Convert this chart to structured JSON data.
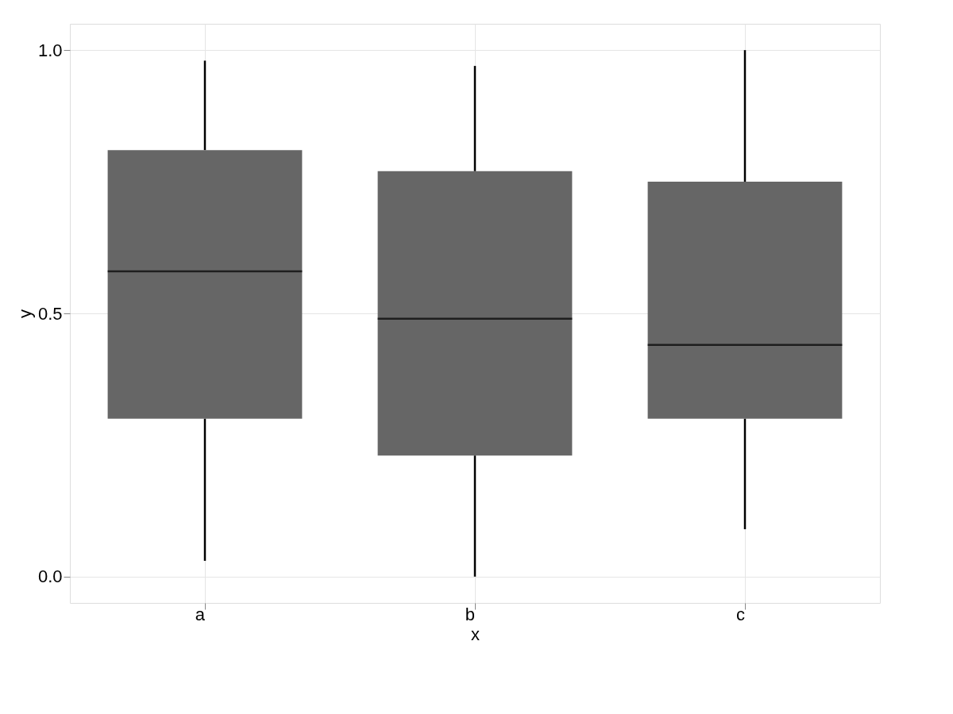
{
  "chart_data": {
    "type": "box",
    "xlabel": "x",
    "ylabel": "y",
    "categories": [
      "a",
      "b",
      "c"
    ],
    "series": [
      {
        "color": "#666666",
        "boxes": [
          {
            "low": 0.03,
            "q1": 0.3,
            "median": 0.58,
            "q3": 0.81,
            "high": 0.98
          },
          {
            "low": 0.0,
            "q1": 0.23,
            "median": 0.49,
            "q3": 0.77,
            "high": 0.97
          },
          {
            "low": 0.09,
            "q1": 0.3,
            "median": 0.44,
            "q3": 0.75,
            "high": 1.0
          }
        ]
      }
    ],
    "ylim": [
      -0.05,
      1.05
    ],
    "yticks": [
      {
        "value": 0.0,
        "label": "0.0"
      },
      {
        "value": 0.5,
        "label": "0.5"
      },
      {
        "value": 1.0,
        "label": "1.0"
      }
    ],
    "grid": true
  }
}
